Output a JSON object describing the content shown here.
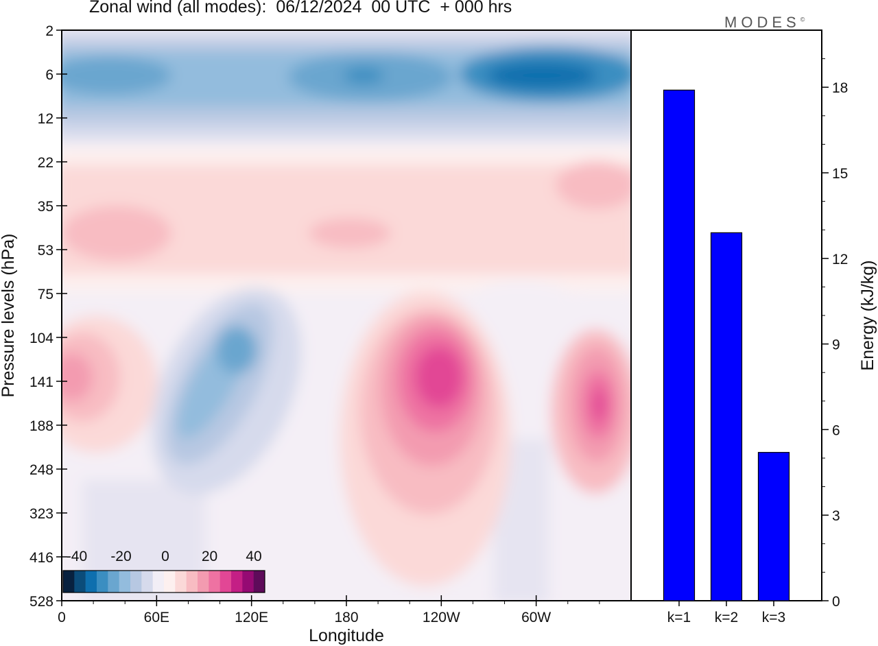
{
  "title": "Zonal wind (all modes):  06/12/2024  00 UTC  + 000 hrs",
  "logo": "MODES",
  "logo_mark": "©",
  "colors": {
    "bar_fill": "#0000ff",
    "scale": [
      "#08213f",
      "#0b4c7a",
      "#0e6fae",
      "#3b8ec1",
      "#6aa6cf",
      "#93bcdd",
      "#b7c8e2",
      "#d6daec",
      "#f2eef6",
      "#fdf0ef",
      "#fbd9d8",
      "#f8bcc2",
      "#f39bb0",
      "#ee72a2",
      "#e24795",
      "#c41f85",
      "#950a73",
      "#5e0b5a"
    ]
  },
  "chart_data": [
    {
      "type": "heatmap",
      "title": "",
      "xlabel": "Longitude",
      "ylabel": "Pressure levels (hPa)",
      "x_ticks": [
        "0",
        "60E",
        "120E",
        "180",
        "120W",
        "60W"
      ],
      "y_ticks": [
        "2",
        "6",
        "12",
        "22",
        "35",
        "53",
        "75",
        "104",
        "141",
        "188",
        "248",
        "323",
        "416",
        "528"
      ],
      "colorbar": {
        "labels": [
          "-40",
          "-20",
          "0",
          "20",
          "40"
        ],
        "range": [
          -40,
          40
        ]
      },
      "features": [
        {
          "kind": "easterly",
          "level": "6",
          "lon": "0-360",
          "approx_value": -30
        },
        {
          "kind": "westerly jet",
          "level": "141",
          "lon": "120W",
          "approx_value": 35
        },
        {
          "kind": "westerly jet",
          "level": "141",
          "lon": "30W",
          "approx_value": 30
        },
        {
          "kind": "westerly jet",
          "level": "141",
          "lon": "0",
          "approx_value": 20
        },
        {
          "kind": "easterly",
          "level": "104",
          "lon": "100E",
          "approx_value": -25
        }
      ]
    },
    {
      "type": "bar",
      "title": "",
      "categories": [
        "k=1",
        "k=2",
        "k=3"
      ],
      "values": [
        17.9,
        12.9,
        5.2
      ],
      "xlabel": "",
      "ylabel": "Energy (kJ/kg)",
      "ylim": [
        0,
        20
      ],
      "y_ticks": [
        "0",
        "3",
        "6",
        "9",
        "12",
        "15",
        "18"
      ]
    }
  ]
}
